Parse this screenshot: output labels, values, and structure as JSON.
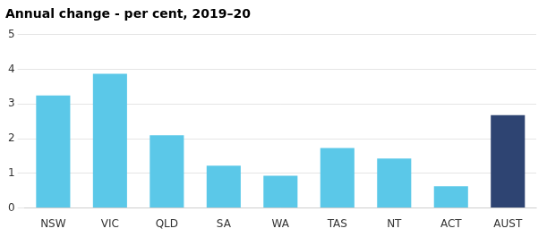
{
  "chart_data": {
    "type": "bar",
    "title": "Annual change - per cent, 2019–20",
    "categories": [
      "NSW",
      "VIC",
      "QLD",
      "SA",
      "WA",
      "TAS",
      "NT",
      "ACT",
      "AUST"
    ],
    "values": [
      3.25,
      3.87,
      2.1,
      1.22,
      0.93,
      1.73,
      1.43,
      0.63,
      2.68
    ],
    "colors": [
      "#5bc8e8",
      "#5bc8e8",
      "#5bc8e8",
      "#5bc8e8",
      "#5bc8e8",
      "#5bc8e8",
      "#5bc8e8",
      "#5bc8e8",
      "#2e4472"
    ],
    "ylim": [
      0,
      5
    ],
    "yticks": [
      0,
      1,
      2,
      3,
      4,
      5
    ],
    "grid": true
  }
}
